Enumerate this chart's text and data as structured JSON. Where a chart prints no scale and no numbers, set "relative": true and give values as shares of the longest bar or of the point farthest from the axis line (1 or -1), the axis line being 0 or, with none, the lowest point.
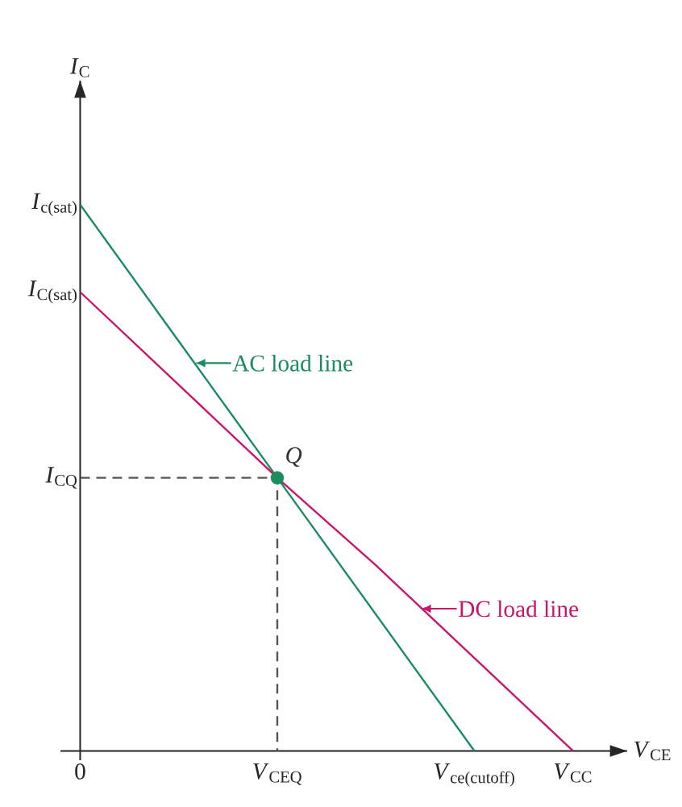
{
  "chart_data": {
    "type": "line",
    "relative": true,
    "xlabel": "*V*$_{CE}$",
    "legend": "center",
    "categories": [
      "0",
      null,
      "*V*$_{CEQ}$",
      null,
      "*V*$_{ce(cutoff)}$",
      "*V*$_{CC}$"
    ],
    "series": [
      {
        "name": "AC load line",
        "color": "#1a8c5e",
        "values": [
          1,
          0.75,
          0.5,
          0.25,
          0,
          null
        ]
      },
      {
        "name": "DC load line",
        "color": "#c8176a",
        "values": [
          0.84,
          0.67,
          0.5,
          0.34,
          0.17,
          0
        ]
      },
      {
        "type": "line",
        "line_style": "dashed",
        "color": "#555555",
        "x": [
          "0",
          "*V*$_{CEQ}$",
          "*V*$_{CEQ}$"
        ],
        "values": [
          0.5,
          0.5,
          0
        ]
      },
      {
        "type": "scatter",
        "marker": "circle",
        "color": "#1a8c5e",
        "values": [
          null,
          null,
          0.5,
          null,
          null,
          null
        ]
      }
    ],
    "annotations": [
      "*I*$_{C}$",
      {
        "text": "*I*$_{c(sat)}$",
        "x": "0",
        "y": 1
      },
      {
        "text": "*I*$_{C(sat)}$",
        "x": "0",
        "y": 0.84
      },
      {
        "text": "*I*$_{CQ}$",
        "x": "0",
        "y": 0.5
      },
      {
        "text": "Q",
        "x": "*V*$_{CEQ}$",
        "y": 0.5
      }
    ]
  }
}
